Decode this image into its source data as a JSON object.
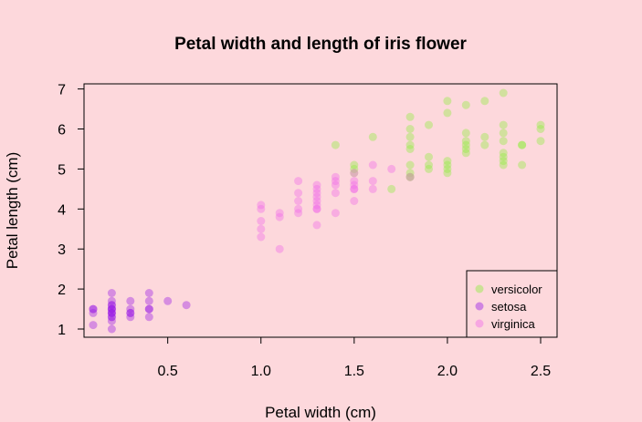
{
  "chart_data": {
    "type": "scatter",
    "title": "Petal width and length of iris flower",
    "xlabel": "Petal width (cm)",
    "ylabel": "Petal length (cm)",
    "xlim": [
      0.1,
      2.5
    ],
    "ylim": [
      1.0,
      6.9
    ],
    "xticks": [
      0.5,
      1.0,
      1.5,
      2.0,
      2.5
    ],
    "xtick_labels": [
      "0.5",
      "1.0",
      "1.5",
      "2.0",
      "2.5"
    ],
    "yticks": [
      1,
      2,
      3,
      4,
      5,
      6,
      7
    ],
    "ytick_labels": [
      "1",
      "2",
      "3",
      "4",
      "5",
      "6",
      "7"
    ],
    "grid": false,
    "legend_position": "bottom-right",
    "series": [
      {
        "name": "versicolor",
        "color": "#90ee40",
        "points": [
          [
            1.4,
            5.6
          ],
          [
            1.5,
            4.9
          ],
          [
            1.5,
            5.0
          ],
          [
            1.5,
            5.1
          ],
          [
            1.6,
            5.8
          ],
          [
            1.7,
            4.5
          ],
          [
            1.8,
            4.8
          ],
          [
            1.8,
            4.8
          ],
          [
            1.8,
            4.9
          ],
          [
            1.8,
            5.1
          ],
          [
            1.8,
            5.5
          ],
          [
            1.8,
            5.6
          ],
          [
            1.8,
            5.8
          ],
          [
            1.8,
            6.0
          ],
          [
            1.8,
            6.3
          ],
          [
            1.9,
            5.0
          ],
          [
            1.9,
            5.1
          ],
          [
            1.9,
            5.3
          ],
          [
            1.9,
            6.1
          ],
          [
            2.0,
            4.9
          ],
          [
            2.0,
            5.0
          ],
          [
            2.0,
            5.1
          ],
          [
            2.0,
            5.2
          ],
          [
            2.0,
            6.4
          ],
          [
            2.0,
            6.7
          ],
          [
            2.1,
            5.4
          ],
          [
            2.1,
            5.5
          ],
          [
            2.1,
            5.6
          ],
          [
            2.1,
            5.7
          ],
          [
            2.1,
            5.9
          ],
          [
            2.1,
            6.6
          ],
          [
            2.2,
            5.6
          ],
          [
            2.2,
            5.8
          ],
          [
            2.2,
            6.7
          ],
          [
            2.3,
            5.1
          ],
          [
            2.3,
            5.2
          ],
          [
            2.3,
            5.3
          ],
          [
            2.3,
            5.4
          ],
          [
            2.3,
            5.7
          ],
          [
            2.3,
            5.9
          ],
          [
            2.3,
            6.1
          ],
          [
            2.3,
            6.9
          ],
          [
            2.4,
            5.1
          ],
          [
            2.4,
            5.6
          ],
          [
            2.4,
            5.6
          ],
          [
            2.5,
            5.7
          ],
          [
            2.5,
            6.0
          ],
          [
            2.5,
            6.1
          ]
        ]
      },
      {
        "name": "setosa",
        "color": "#9a1ee6",
        "points": [
          [
            0.1,
            1.1
          ],
          [
            0.1,
            1.4
          ],
          [
            0.1,
            1.5
          ],
          [
            0.1,
            1.5
          ],
          [
            0.2,
            1.0
          ],
          [
            0.2,
            1.2
          ],
          [
            0.2,
            1.3
          ],
          [
            0.2,
            1.3
          ],
          [
            0.2,
            1.4
          ],
          [
            0.2,
            1.4
          ],
          [
            0.2,
            1.4
          ],
          [
            0.2,
            1.5
          ],
          [
            0.2,
            1.5
          ],
          [
            0.2,
            1.5
          ],
          [
            0.2,
            1.6
          ],
          [
            0.2,
            1.6
          ],
          [
            0.2,
            1.7
          ],
          [
            0.2,
            1.9
          ],
          [
            0.3,
            1.3
          ],
          [
            0.3,
            1.4
          ],
          [
            0.3,
            1.4
          ],
          [
            0.3,
            1.5
          ],
          [
            0.3,
            1.7
          ],
          [
            0.4,
            1.3
          ],
          [
            0.4,
            1.5
          ],
          [
            0.4,
            1.5
          ],
          [
            0.4,
            1.7
          ],
          [
            0.4,
            1.9
          ],
          [
            0.5,
            1.7
          ],
          [
            0.6,
            1.6
          ]
        ]
      },
      {
        "name": "virginica",
        "color": "#f06ce8",
        "points": [
          [
            1.0,
            3.3
          ],
          [
            1.0,
            3.5
          ],
          [
            1.0,
            3.7
          ],
          [
            1.0,
            4.0
          ],
          [
            1.0,
            4.1
          ],
          [
            1.1,
            3.0
          ],
          [
            1.1,
            3.8
          ],
          [
            1.1,
            3.9
          ],
          [
            1.2,
            3.9
          ],
          [
            1.2,
            4.0
          ],
          [
            1.2,
            4.2
          ],
          [
            1.2,
            4.4
          ],
          [
            1.2,
            4.7
          ],
          [
            1.3,
            3.6
          ],
          [
            1.3,
            4.0
          ],
          [
            1.3,
            4.0
          ],
          [
            1.3,
            4.1
          ],
          [
            1.3,
            4.2
          ],
          [
            1.3,
            4.3
          ],
          [
            1.3,
            4.4
          ],
          [
            1.3,
            4.5
          ],
          [
            1.3,
            4.6
          ],
          [
            1.4,
            3.9
          ],
          [
            1.4,
            4.4
          ],
          [
            1.4,
            4.6
          ],
          [
            1.4,
            4.7
          ],
          [
            1.4,
            4.8
          ],
          [
            1.5,
            4.2
          ],
          [
            1.5,
            4.5
          ],
          [
            1.5,
            4.5
          ],
          [
            1.5,
            4.6
          ],
          [
            1.5,
            4.7
          ],
          [
            1.5,
            4.9
          ],
          [
            1.6,
            4.5
          ],
          [
            1.6,
            4.7
          ],
          [
            1.6,
            5.1
          ],
          [
            1.7,
            5.0
          ],
          [
            1.8,
            4.8
          ]
        ]
      }
    ]
  }
}
